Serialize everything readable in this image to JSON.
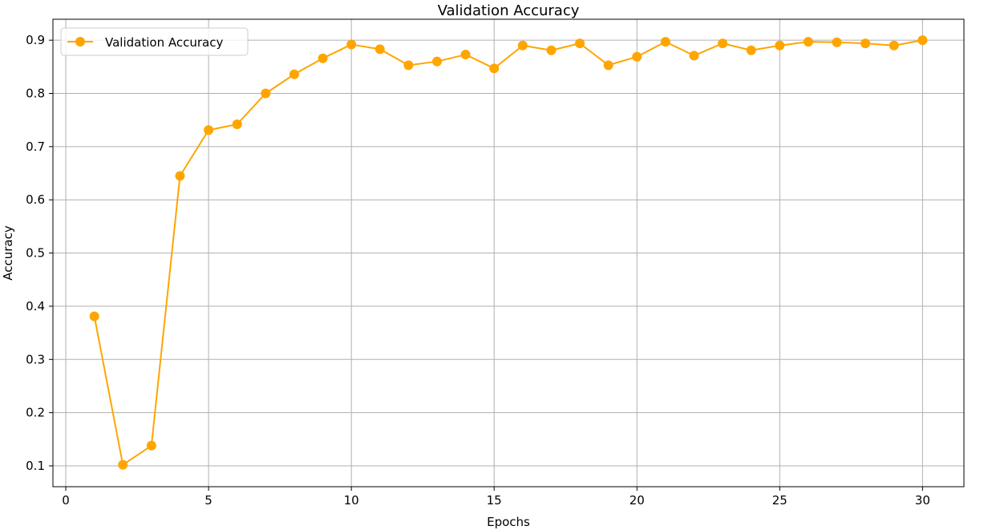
{
  "chart_data": {
    "type": "line",
    "title": "Validation Accuracy",
    "xlabel": "Epochs",
    "ylabel": "Accuracy",
    "xlim": [
      -0.45,
      31.45
    ],
    "ylim": [
      0.0608,
      0.9394
    ],
    "xticks": [
      0,
      5,
      10,
      15,
      20,
      25,
      30
    ],
    "yticks": [
      0.1,
      0.2,
      0.3,
      0.4,
      0.5,
      0.6,
      0.7,
      0.8,
      0.9
    ],
    "xtick_labels": [
      "0",
      "5",
      "10",
      "15",
      "20",
      "25",
      "30"
    ],
    "ytick_labels": [
      "0.1",
      "0.2",
      "0.3",
      "0.4",
      "0.5",
      "0.6",
      "0.7",
      "0.8",
      "0.9"
    ],
    "grid": true,
    "legend_position": "top-left",
    "series": [
      {
        "name": "Validation Accuracy",
        "color": "#FFA500",
        "marker": "circle",
        "x": [
          1,
          2,
          3,
          4,
          5,
          6,
          7,
          8,
          9,
          10,
          11,
          12,
          13,
          14,
          15,
          16,
          17,
          18,
          19,
          20,
          21,
          22,
          23,
          24,
          25,
          26,
          27,
          28,
          29,
          30
        ],
        "values": [
          0.381,
          0.102,
          0.138,
          0.645,
          0.731,
          0.742,
          0.8,
          0.836,
          0.866,
          0.892,
          0.883,
          0.853,
          0.86,
          0.873,
          0.847,
          0.89,
          0.881,
          0.894,
          0.853,
          0.869,
          0.897,
          0.871,
          0.894,
          0.881,
          0.89,
          0.897,
          0.896,
          0.894,
          0.89,
          0.9
        ]
      }
    ]
  }
}
